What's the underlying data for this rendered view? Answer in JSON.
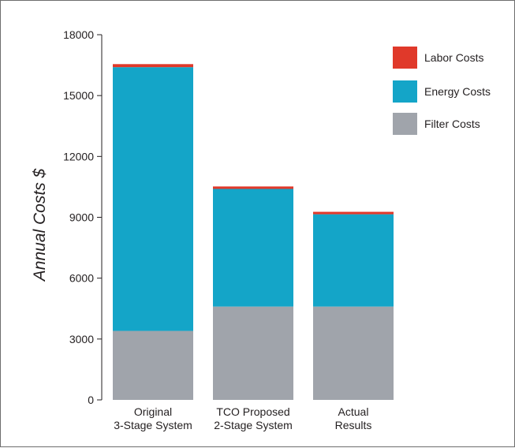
{
  "chart_data": {
    "type": "bar",
    "stacked": true,
    "categories": [
      [
        "Original",
        "3-Stage System"
      ],
      [
        "TCO Proposed",
        "2-Stage System"
      ],
      [
        "Actual",
        "Results"
      ]
    ],
    "series": [
      {
        "name": "Filter Costs",
        "color": "#a0a4ab",
        "values": [
          3400,
          4600,
          4600
        ]
      },
      {
        "name": "Energy Costs",
        "color": "#14a5c8",
        "values": [
          13000,
          5800,
          4550
        ]
      },
      {
        "name": "Labor Costs",
        "color": "#e0392a",
        "values": [
          150,
          120,
          120
        ]
      }
    ],
    "legend_order": [
      "Labor Costs",
      "Energy Costs",
      "Filter Costs"
    ],
    "legend_position": "top-right",
    "ylabel": "Annual Costs $",
    "xlabel": "",
    "title": "",
    "ylim": [
      0,
      18000
    ],
    "yticks": [
      0,
      3000,
      6000,
      9000,
      12000,
      15000,
      18000
    ],
    "grid": false
  }
}
